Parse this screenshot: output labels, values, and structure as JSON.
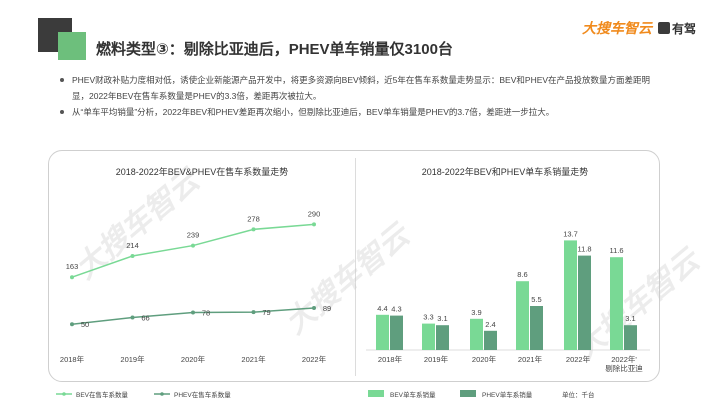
{
  "header": {
    "title": "燃料类型③：剔除比亚迪后，PHEV单车销量仅3100台",
    "brand_main": "大搜车智云",
    "brand_sub": "有驾"
  },
  "bullets": [
    "PHEV财政补贴力度相对低，诱使企业新能源产品开发中，将更多资源向BEV倾斜，近5年在售车系数量走势显示：BEV和PHEV在产品投放数量方面差距明显，2022年BEV在售车系数量是PHEV的3.3倍，差距再次被拉大。",
    "从“单车平均销量”分析，2022年BEV和PHEV差距再次缩小，但剔除比亚迪后，BEV单车销量是PHEV的3.7倍，差距进一步拉大。"
  ],
  "watermark": "大搜车智云",
  "colors": {
    "bev": "#79d995",
    "phev": "#5f9e7e",
    "accent": "#f08a1c"
  },
  "chart_data": [
    {
      "type": "line",
      "title": "2018-2022年BEV&PHEV在售车系数量走势",
      "categories": [
        "2018年",
        "2019年",
        "2020年",
        "2021年",
        "2022年"
      ],
      "series": [
        {
          "name": "BEV在售车系数量",
          "values": [
            163,
            214,
            239,
            278,
            290
          ]
        },
        {
          "name": "PHEV在售车系数量",
          "values": [
            50,
            66,
            78,
            79,
            89
          ]
        }
      ],
      "legend": "bottom-left",
      "ylim": [
        0,
        320
      ],
      "grid": false
    },
    {
      "type": "bar",
      "title": "2018-2022年BEV和PHEV单车系销量走势",
      "categories": [
        "2018年",
        "2019年",
        "2020年",
        "2021年",
        "2022年",
        "2022年'\n剔除比亚迪"
      ],
      "series": [
        {
          "name": "BEV单车系销量",
          "values": [
            4.4,
            3.3,
            3.9,
            8.6,
            13.7,
            11.6
          ]
        },
        {
          "name": "PHEV单车系销量",
          "values": [
            4.3,
            3.1,
            2.4,
            5.5,
            11.8,
            3.1
          ]
        }
      ],
      "unit_note": "单位：千台",
      "legend": "bottom",
      "ylim": [
        0,
        15
      ],
      "grid": false
    }
  ]
}
